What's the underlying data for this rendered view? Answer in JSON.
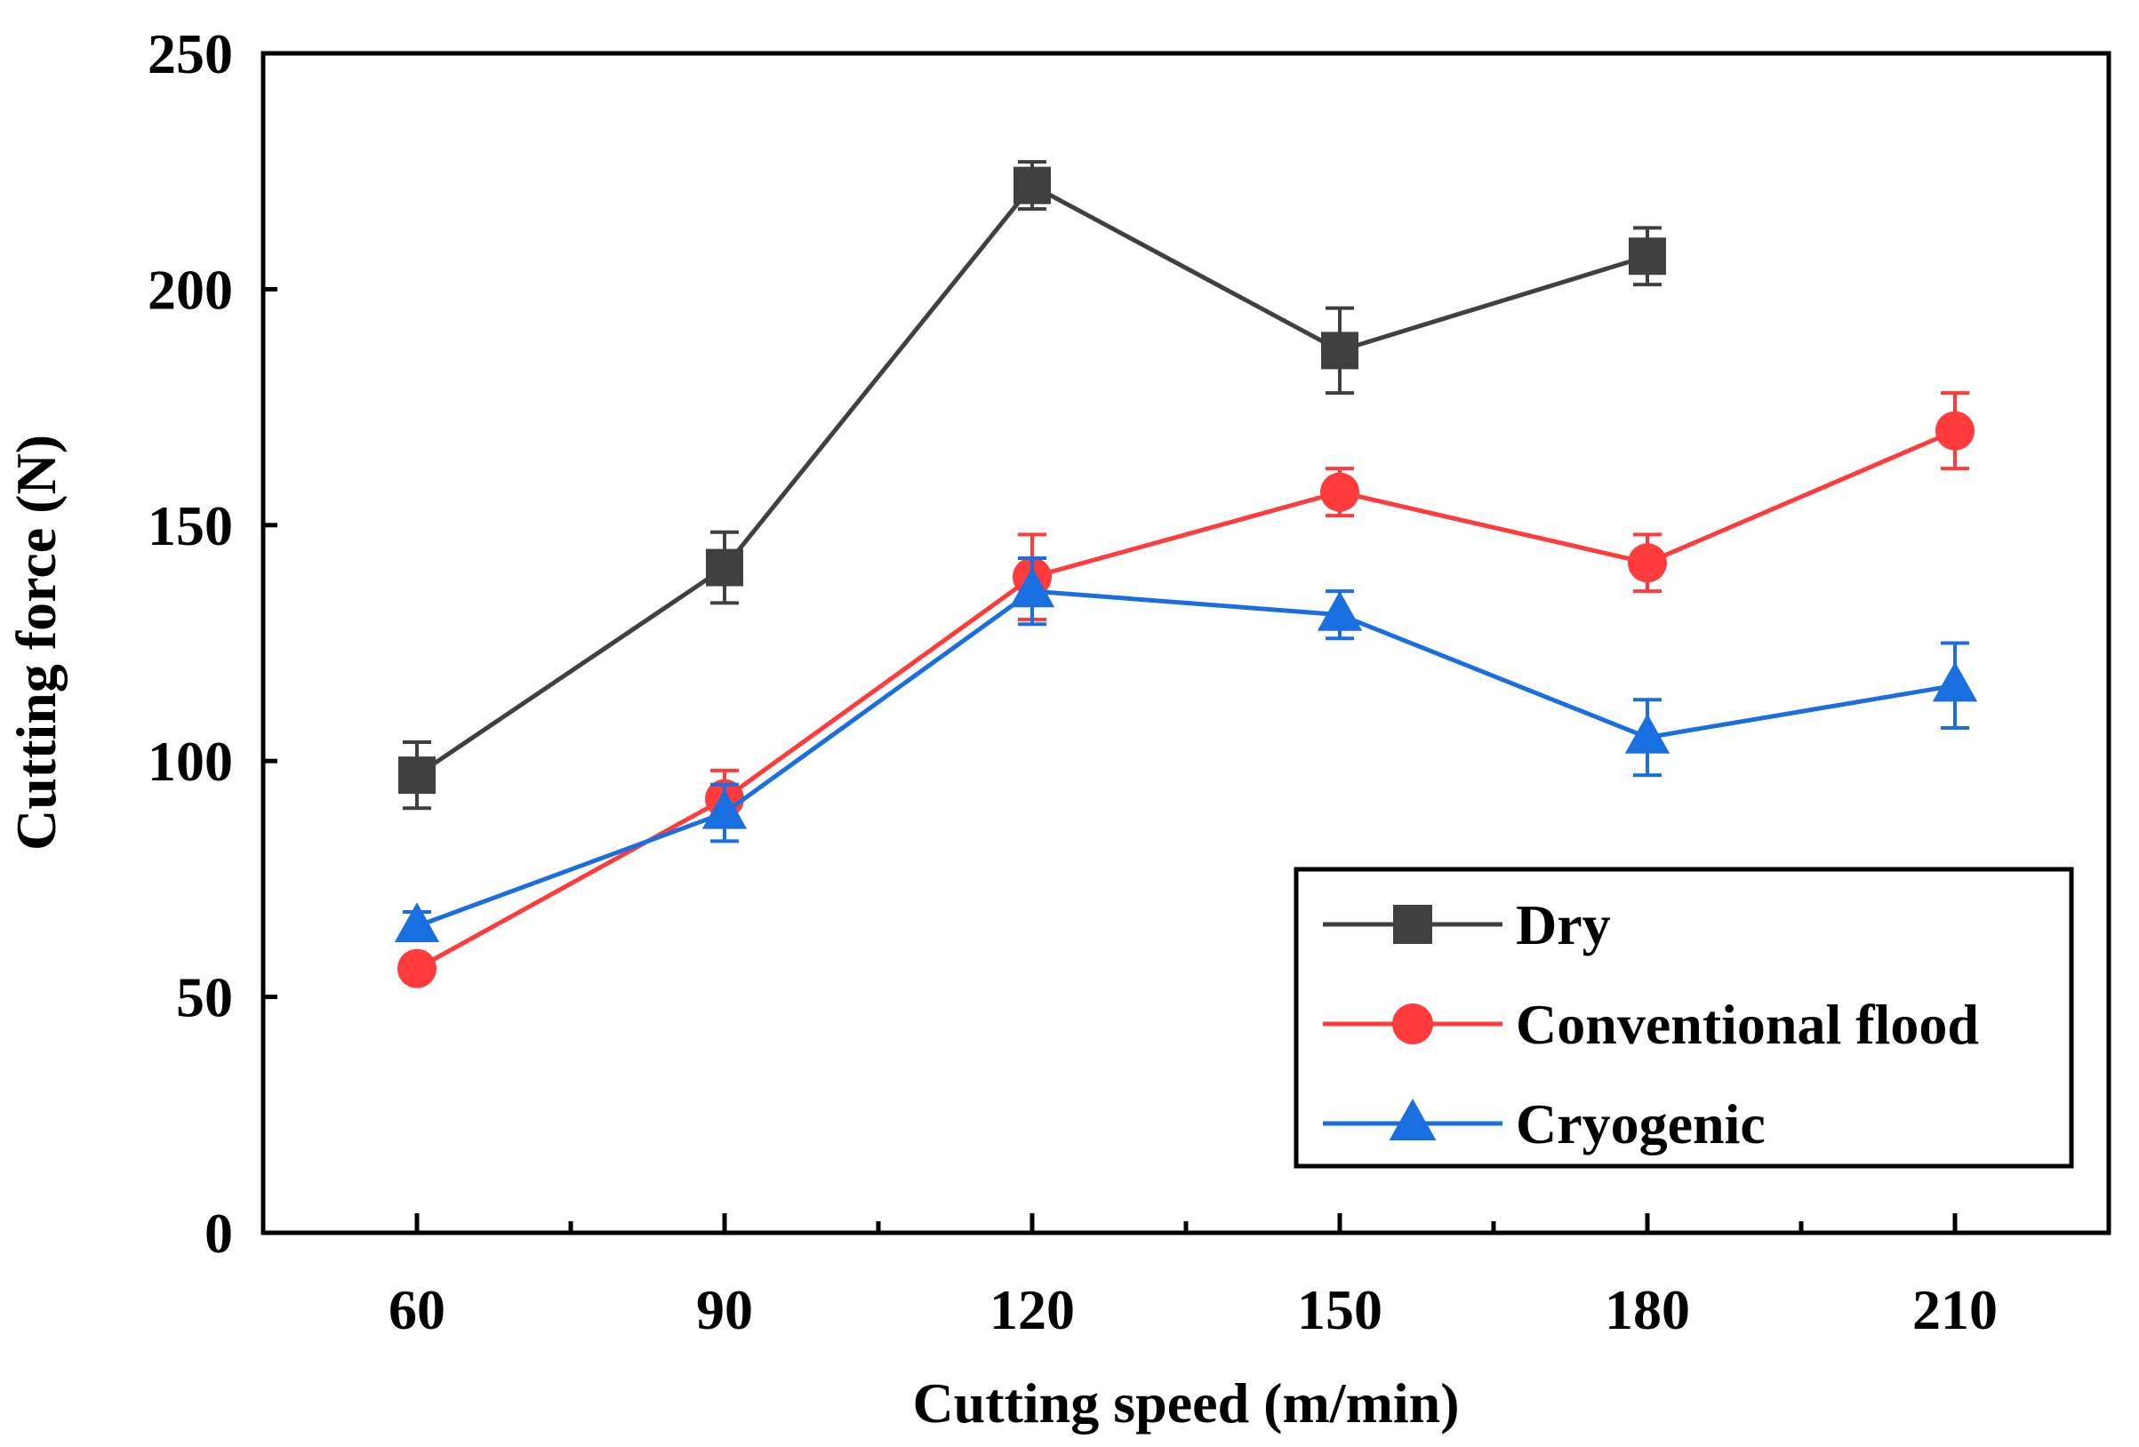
{
  "chart_data": {
    "type": "line",
    "title": "",
    "xlabel": "Cutting speed (m/min)",
    "ylabel": "Cutting force (N)",
    "xlim": [
      45,
      225
    ],
    "ylim": [
      0,
      250
    ],
    "xticks": [
      60,
      90,
      120,
      150,
      180,
      210
    ],
    "xminor": [
      75,
      105,
      135,
      165,
      195
    ],
    "yticks": [
      0,
      50,
      100,
      150,
      200,
      250
    ],
    "grid": false,
    "legend_position": "bottom-right",
    "series": [
      {
        "name": "Dry",
        "color": "#404040",
        "marker": "square",
        "x": [
          60,
          90,
          120,
          150,
          180
        ],
        "y": [
          97,
          141,
          222,
          187,
          207
        ],
        "err": [
          7,
          7.5,
          5,
          9,
          6
        ]
      },
      {
        "name": "Conventional flood",
        "color": "#ff3b3b",
        "marker": "circle",
        "x": [
          60,
          90,
          120,
          150,
          180,
          210
        ],
        "y": [
          56,
          92,
          139,
          157,
          142,
          170
        ],
        "err": [
          0,
          6,
          9,
          5,
          6,
          8
        ]
      },
      {
        "name": "Cryogenic",
        "color": "#1a6fe0",
        "marker": "triangle",
        "x": [
          60,
          90,
          120,
          150,
          180,
          210
        ],
        "y": [
          65,
          89,
          136,
          131,
          105,
          116
        ],
        "err": [
          3,
          6,
          7,
          5,
          8,
          9
        ]
      }
    ]
  }
}
